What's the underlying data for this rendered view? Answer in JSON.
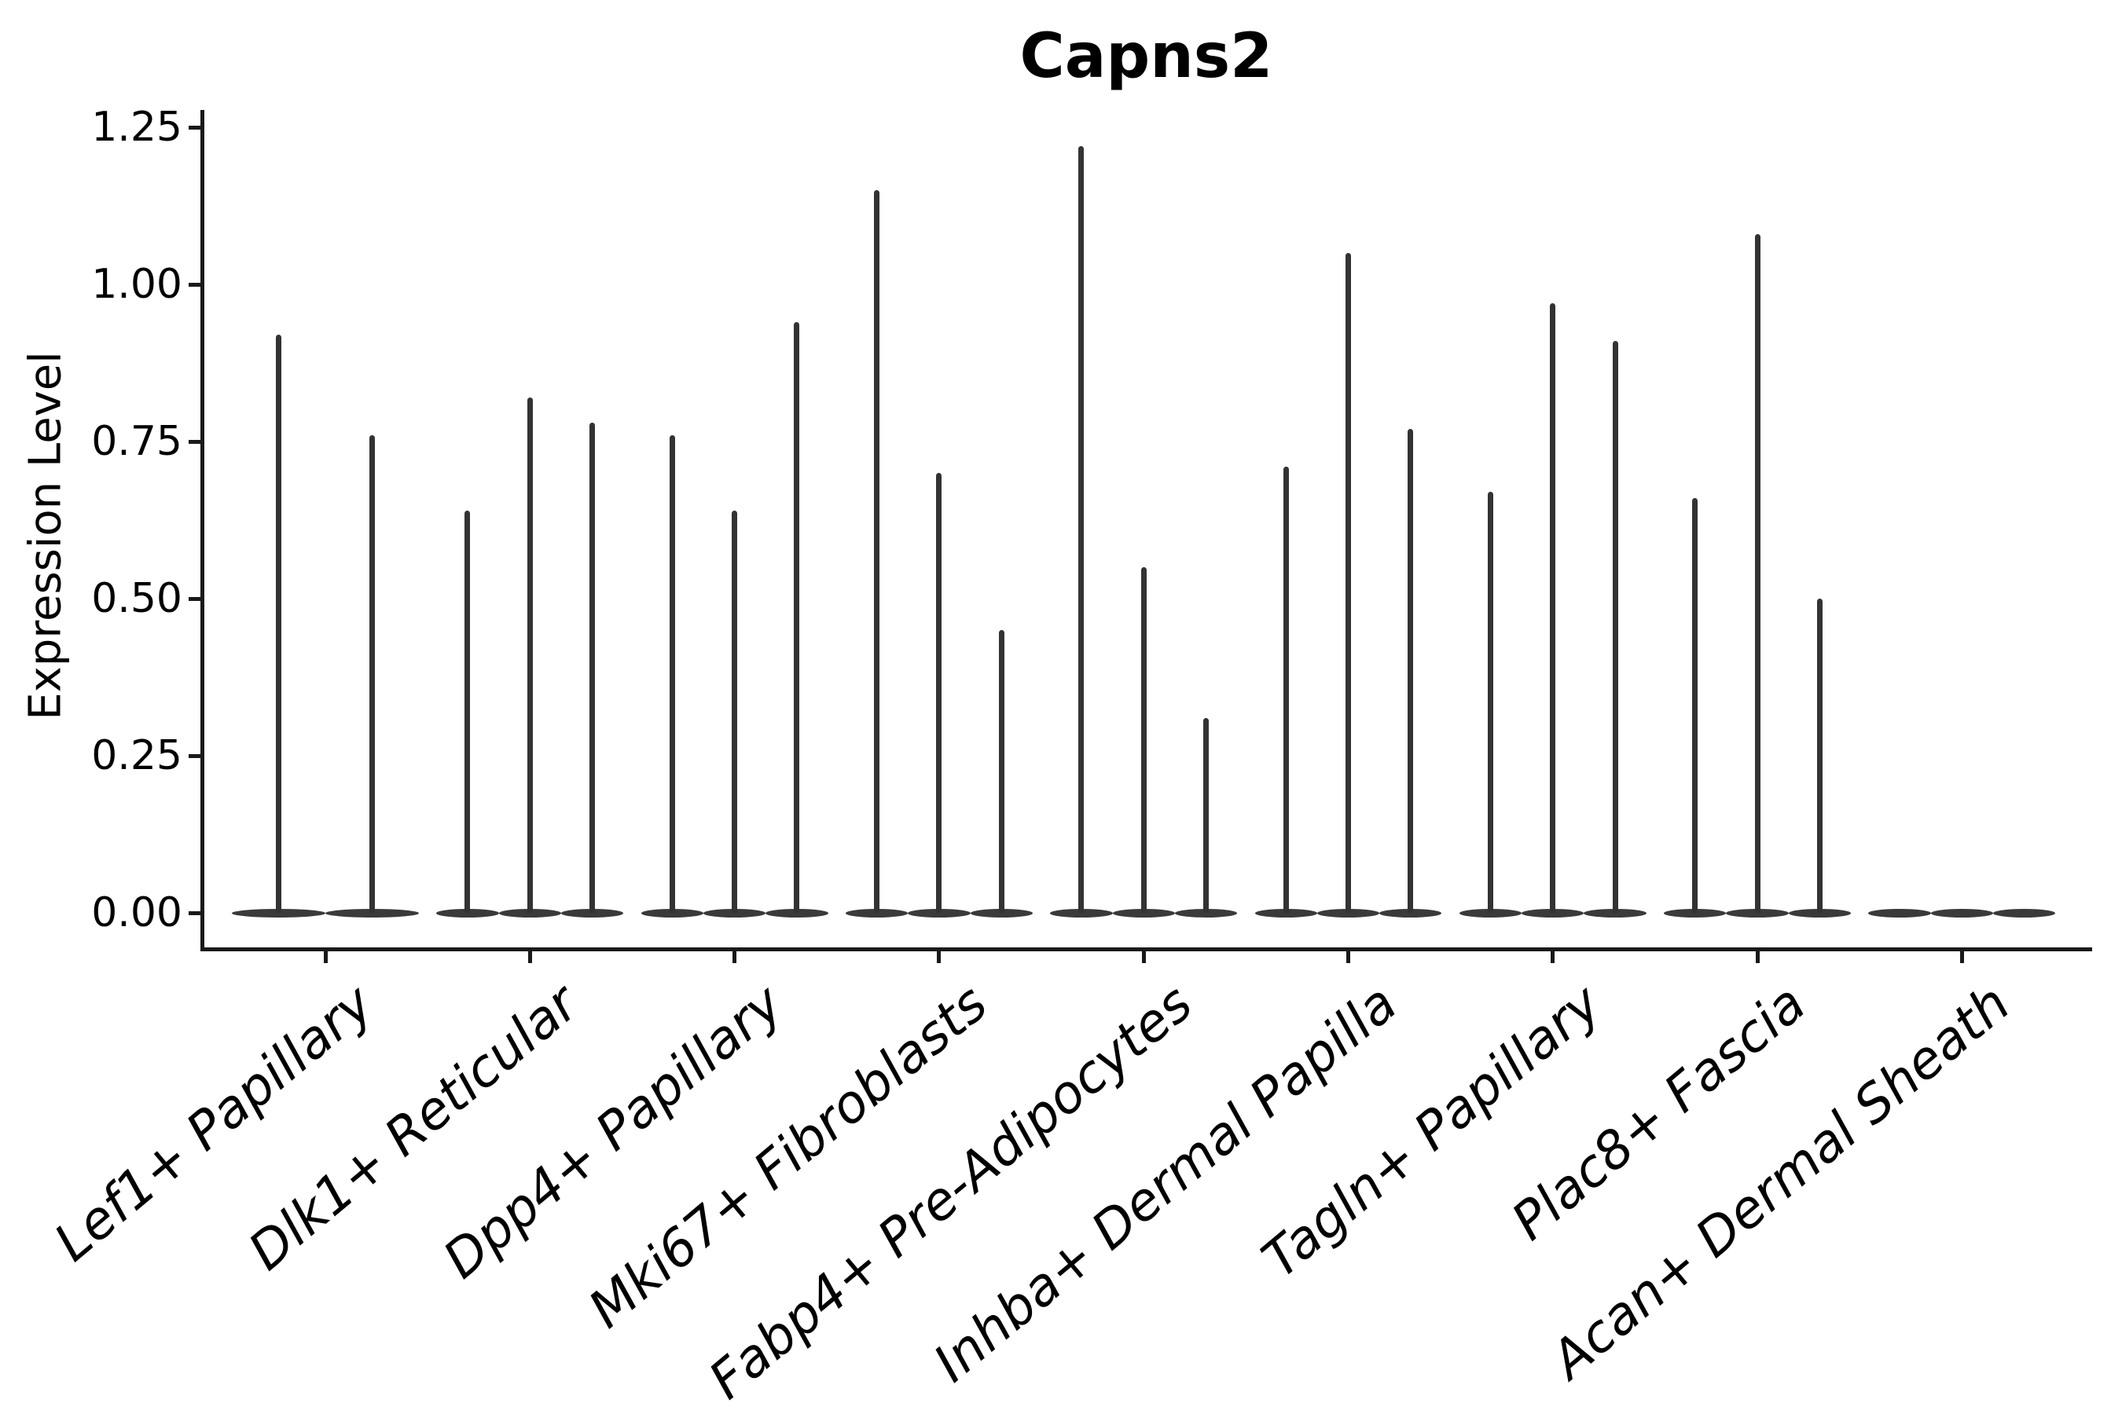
{
  "chart_data": {
    "type": "violin",
    "title": "Capns2",
    "ylabel": "Expression Level",
    "xlabel": "",
    "ylim": [
      0,
      1.28
    ],
    "yticks": [
      {
        "value": 0.0,
        "label": "0.00"
      },
      {
        "value": 0.25,
        "label": "0.25"
      },
      {
        "value": 0.5,
        "label": "0.50"
      },
      {
        "value": 0.75,
        "label": "0.75"
      },
      {
        "value": 1.0,
        "label": "1.00"
      },
      {
        "value": 1.25,
        "label": "1.25"
      }
    ],
    "grid": false,
    "legend": "none",
    "description": "Stacked-violin style expression plot; each category shows flat zero-density violins with thin spikes rising to the maximum expression value per violin",
    "categories": [
      "Lef1+ Papillary",
      "Dlk1+ Reticular",
      "Dpp4+ Papillary",
      "Mki67+ Fibroblasts",
      "Fabp4+ Pre-Adipocytes",
      "Inhba+ Dermal Papilla",
      "Tagln+ Papillary",
      "Plac8+ Fascia",
      "Acan+ Dermal Sheath"
    ],
    "groups": [
      {
        "label": "Lef1+ Papillary",
        "violin_max_values": [
          0.92,
          0.76
        ]
      },
      {
        "label": "Dlk1+ Reticular",
        "violin_max_values": [
          0.64,
          0.82,
          0.78
        ]
      },
      {
        "label": "Dpp4+ Papillary",
        "violin_max_values": [
          0.76,
          0.64,
          0.94
        ]
      },
      {
        "label": "Mki67+ Fibroblasts",
        "violin_max_values": [
          1.15,
          0.7,
          0.45
        ]
      },
      {
        "label": "Fabp4+ Pre-Adipocytes",
        "violin_max_values": [
          1.22,
          0.55,
          0.31
        ]
      },
      {
        "label": "Inhba+ Dermal Papilla",
        "violin_max_values": [
          0.71,
          1.05,
          0.77
        ]
      },
      {
        "label": "Tagln+ Papillary",
        "violin_max_values": [
          0.67,
          0.97,
          0.91
        ]
      },
      {
        "label": "Plac8+ Fascia",
        "violin_max_values": [
          0.66,
          1.08,
          0.5
        ]
      },
      {
        "label": "Acan+ Dermal Sheath",
        "violin_max_values": [
          0.0,
          0.0,
          0.0
        ]
      }
    ]
  },
  "colors": {
    "spike": "#333333",
    "violin_base": "#3a3a3a",
    "axis": "#1a1a1a",
    "text": "#000000",
    "background": "#ffffff"
  }
}
